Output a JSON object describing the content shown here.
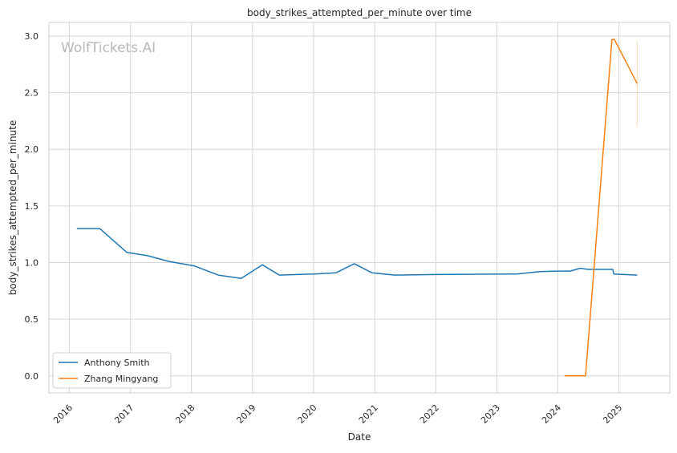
{
  "watermark": "WolfTickets.AI",
  "chart_data": {
    "type": "line",
    "title": "body_strikes_attempted_per_minute over time",
    "xlabel": "Date",
    "ylabel": "body_strikes_attempted_per_minute",
    "xlim": [
      "2015-09-01",
      "2025-11-01"
    ],
    "ylim": [
      -0.15,
      3.12
    ],
    "x_ticks": [
      "2016",
      "2017",
      "2018",
      "2019",
      "2020",
      "2021",
      "2022",
      "2023",
      "2024",
      "2025"
    ],
    "y_ticks": [
      "0.0",
      "0.5",
      "1.0",
      "1.5",
      "2.0",
      "2.5",
      "3.0"
    ],
    "grid": true,
    "legend_position": "lower-left",
    "series": [
      {
        "name": "Anthony Smith",
        "color": "#1f77b4",
        "points": [
          [
            "2016-02-15",
            1.3
          ],
          [
            "2016-07-01",
            1.3
          ],
          [
            "2016-12-10",
            1.09
          ],
          [
            "2017-04-15",
            1.06
          ],
          [
            "2017-08-20",
            1.01
          ],
          [
            "2018-01-20",
            0.97
          ],
          [
            "2018-06-10",
            0.89
          ],
          [
            "2018-10-25",
            0.86
          ],
          [
            "2019-03-01",
            0.98
          ],
          [
            "2019-06-10",
            0.89
          ],
          [
            "2020-01-05",
            0.9
          ],
          [
            "2020-05-15",
            0.91
          ],
          [
            "2020-09-01",
            0.99
          ],
          [
            "2020-12-15",
            0.91
          ],
          [
            "2021-05-01",
            0.89
          ],
          [
            "2022-01-01",
            0.895
          ],
          [
            "2023-05-01",
            0.9
          ],
          [
            "2023-09-15",
            0.92
          ],
          [
            "2024-01-01",
            0.925
          ],
          [
            "2024-03-15",
            0.925
          ],
          [
            "2024-05-15",
            0.95
          ],
          [
            "2024-07-01",
            0.94
          ],
          [
            "2024-11-25",
            0.94
          ],
          [
            "2024-12-01",
            0.9
          ],
          [
            "2025-04-20",
            0.89
          ]
        ]
      },
      {
        "name": "Zhang Mingyang",
        "color": "#ff7f0e",
        "points": [
          [
            "2024-02-10",
            0.0
          ],
          [
            "2024-06-15",
            0.0
          ],
          [
            "2024-11-20",
            2.97
          ],
          [
            "2024-12-05",
            2.97
          ],
          [
            "2025-04-20",
            2.58
          ]
        ],
        "error_bar": {
          "x": "2025-04-20",
          "low": 2.2,
          "high": 2.96
        }
      }
    ]
  }
}
